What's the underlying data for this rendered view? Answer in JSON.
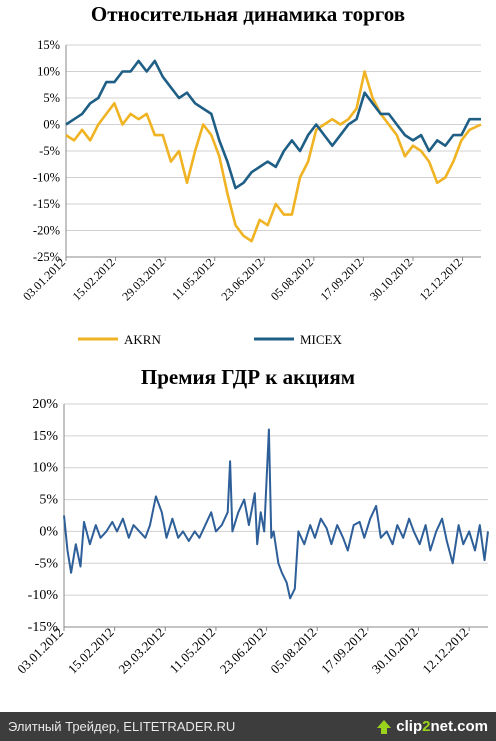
{
  "chart_data": [
    {
      "type": "line",
      "title": "Относительная динамика торгов",
      "ylim": [
        -0.25,
        0.15
      ],
      "yticks": [
        "-25%",
        "-20%",
        "-15%",
        "-10%",
        "-5%",
        "0%",
        "5%",
        "10%",
        "15%"
      ],
      "yticks_values": [
        -0.25,
        -0.2,
        -0.15,
        -0.1,
        -0.05,
        0,
        0.05,
        0.1,
        0.15
      ],
      "xticks": [
        "03.01.2012",
        "15.02.2012",
        "29.03.2012",
        "11.05.2012",
        "23.06.2012",
        "05.08.2012",
        "17.09.2012",
        "30.10.2012",
        "12.12.2012"
      ],
      "x_range": [
        "03.01.2012",
        "28.12.2012"
      ],
      "grid": "horizontal",
      "legend_position": "bottom",
      "series": [
        {
          "name": "AKRN",
          "color": "#f0b323",
          "points": [
            [
              "03.01.2012",
              -0.02
            ],
            [
              "10.01.2012",
              -0.03
            ],
            [
              "17.01.2012",
              -0.01
            ],
            [
              "24.01.2012",
              -0.03
            ],
            [
              "31.01.2012",
              0.0
            ],
            [
              "07.02.2012",
              0.02
            ],
            [
              "14.02.2012",
              0.04
            ],
            [
              "21.02.2012",
              0.0
            ],
            [
              "28.02.2012",
              0.02
            ],
            [
              "06.03.2012",
              0.01
            ],
            [
              "13.03.2012",
              0.02
            ],
            [
              "20.03.2012",
              -0.02
            ],
            [
              "27.03.2012",
              -0.02
            ],
            [
              "03.04.2012",
              -0.07
            ],
            [
              "10.04.2012",
              -0.05
            ],
            [
              "17.04.2012",
              -0.11
            ],
            [
              "24.04.2012",
              -0.05
            ],
            [
              "01.05.2012",
              0.0
            ],
            [
              "08.05.2012",
              -0.02
            ],
            [
              "15.05.2012",
              -0.06
            ],
            [
              "22.05.2012",
              -0.13
            ],
            [
              "29.05.2012",
              -0.19
            ],
            [
              "05.06.2012",
              -0.21
            ],
            [
              "12.06.2012",
              -0.22
            ],
            [
              "19.06.2012",
              -0.18
            ],
            [
              "26.06.2012",
              -0.19
            ],
            [
              "03.07.2012",
              -0.15
            ],
            [
              "10.07.2012",
              -0.17
            ],
            [
              "17.07.2012",
              -0.17
            ],
            [
              "24.07.2012",
              -0.1
            ],
            [
              "31.07.2012",
              -0.07
            ],
            [
              "07.08.2012",
              -0.01
            ],
            [
              "14.08.2012",
              0.0
            ],
            [
              "21.08.2012",
              0.01
            ],
            [
              "28.08.2012",
              0.0
            ],
            [
              "04.09.2012",
              0.01
            ],
            [
              "11.09.2012",
              0.03
            ],
            [
              "18.09.2012",
              0.1
            ],
            [
              "25.09.2012",
              0.05
            ],
            [
              "02.10.2012",
              0.02
            ],
            [
              "09.10.2012",
              0.0
            ],
            [
              "16.10.2012",
              -0.02
            ],
            [
              "23.10.2012",
              -0.06
            ],
            [
              "30.10.2012",
              -0.04
            ],
            [
              "06.11.2012",
              -0.05
            ],
            [
              "13.11.2012",
              -0.07
            ],
            [
              "20.11.2012",
              -0.11
            ],
            [
              "27.11.2012",
              -0.1
            ],
            [
              "04.12.2012",
              -0.07
            ],
            [
              "11.12.2012",
              -0.03
            ],
            [
              "18.12.2012",
              -0.01
            ],
            [
              "28.12.2012",
              0.0
            ]
          ]
        },
        {
          "name": "MICEX",
          "color": "#1f5f86",
          "points": [
            [
              "03.01.2012",
              0.0
            ],
            [
              "10.01.2012",
              0.01
            ],
            [
              "17.01.2012",
              0.02
            ],
            [
              "24.01.2012",
              0.04
            ],
            [
              "31.01.2012",
              0.05
            ],
            [
              "07.02.2012",
              0.08
            ],
            [
              "14.02.2012",
              0.08
            ],
            [
              "21.02.2012",
              0.1
            ],
            [
              "28.02.2012",
              0.1
            ],
            [
              "06.03.2012",
              0.12
            ],
            [
              "13.03.2012",
              0.1
            ],
            [
              "20.03.2012",
              0.12
            ],
            [
              "27.03.2012",
              0.09
            ],
            [
              "03.04.2012",
              0.07
            ],
            [
              "10.04.2012",
              0.05
            ],
            [
              "17.04.2012",
              0.06
            ],
            [
              "24.04.2012",
              0.04
            ],
            [
              "01.05.2012",
              0.03
            ],
            [
              "08.05.2012",
              0.02
            ],
            [
              "15.05.2012",
              -0.03
            ],
            [
              "22.05.2012",
              -0.07
            ],
            [
              "29.05.2012",
              -0.12
            ],
            [
              "05.06.2012",
              -0.11
            ],
            [
              "12.06.2012",
              -0.09
            ],
            [
              "19.06.2012",
              -0.08
            ],
            [
              "26.06.2012",
              -0.07
            ],
            [
              "03.07.2012",
              -0.08
            ],
            [
              "10.07.2012",
              -0.05
            ],
            [
              "17.07.2012",
              -0.03
            ],
            [
              "24.07.2012",
              -0.05
            ],
            [
              "31.07.2012",
              -0.02
            ],
            [
              "07.08.2012",
              0.0
            ],
            [
              "14.08.2012",
              -0.02
            ],
            [
              "21.08.2012",
              -0.04
            ],
            [
              "28.08.2012",
              -0.02
            ],
            [
              "04.09.2012",
              0.0
            ],
            [
              "11.09.2012",
              0.01
            ],
            [
              "18.09.2012",
              0.06
            ],
            [
              "25.09.2012",
              0.04
            ],
            [
              "02.10.2012",
              0.02
            ],
            [
              "09.10.2012",
              0.02
            ],
            [
              "16.10.2012",
              0.0
            ],
            [
              "23.10.2012",
              -0.02
            ],
            [
              "30.10.2012",
              -0.03
            ],
            [
              "06.11.2012",
              -0.02
            ],
            [
              "13.11.2012",
              -0.05
            ],
            [
              "20.11.2012",
              -0.03
            ],
            [
              "27.11.2012",
              -0.04
            ],
            [
              "04.12.2012",
              -0.02
            ],
            [
              "11.12.2012",
              -0.02
            ],
            [
              "18.12.2012",
              0.01
            ],
            [
              "28.12.2012",
              0.01
            ]
          ]
        }
      ]
    },
    {
      "type": "line",
      "title": "Премия ГДР к акциям",
      "ylim": [
        -0.15,
        0.2
      ],
      "yticks": [
        "-15%",
        "-10%",
        "-5%",
        "0%",
        "5%",
        "10%",
        "15%",
        "20%"
      ],
      "yticks_values": [
        -0.15,
        -0.1,
        -0.05,
        0,
        0.05,
        0.1,
        0.15,
        0.2
      ],
      "xticks": [
        "03.01.2012",
        "15.02.2012",
        "29.03.2012",
        "11.05.2012",
        "23.06.2012",
        "05.08.2012",
        "17.09.2012",
        "30.10.2012",
        "12.12.2012"
      ],
      "x_range": [
        "03.01.2012",
        "28.12.2012"
      ],
      "grid": "horizontal",
      "series": [
        {
          "color": "#2e5f99",
          "points": [
            [
              "03.01.2012",
              0.025
            ],
            [
              "06.01.2012",
              -0.03
            ],
            [
              "09.01.2012",
              -0.065
            ],
            [
              "13.01.2012",
              -0.02
            ],
            [
              "17.01.2012",
              -0.055
            ],
            [
              "20.01.2012",
              0.015
            ],
            [
              "25.01.2012",
              -0.02
            ],
            [
              "30.01.2012",
              0.01
            ],
            [
              "03.02.2012",
              -0.01
            ],
            [
              "08.02.2012",
              0.0
            ],
            [
              "13.02.2012",
              0.015
            ],
            [
              "17.02.2012",
              0.0
            ],
            [
              "22.02.2012",
              0.02
            ],
            [
              "27.02.2012",
              -0.01
            ],
            [
              "02.03.2012",
              0.01
            ],
            [
              "07.03.2012",
              0.0
            ],
            [
              "12.03.2012",
              -0.01
            ],
            [
              "16.03.2012",
              0.01
            ],
            [
              "21.03.2012",
              0.055
            ],
            [
              "26.03.2012",
              0.03
            ],
            [
              "30.03.2012",
              -0.01
            ],
            [
              "04.04.2012",
              0.02
            ],
            [
              "09.04.2012",
              -0.01
            ],
            [
              "13.04.2012",
              0.0
            ],
            [
              "18.04.2012",
              -0.015
            ],
            [
              "23.04.2012",
              0.0
            ],
            [
              "27.04.2012",
              -0.01
            ],
            [
              "02.05.2012",
              0.01
            ],
            [
              "07.05.2012",
              0.03
            ],
            [
              "11.05.2012",
              0.0
            ],
            [
              "16.05.2012",
              0.01
            ],
            [
              "21.05.2012",
              0.03
            ],
            [
              "23.05.2012",
              0.11
            ],
            [
              "25.05.2012",
              0.0
            ],
            [
              "30.05.2012",
              0.03
            ],
            [
              "04.06.2012",
              0.05
            ],
            [
              "08.06.2012",
              0.01
            ],
            [
              "13.06.2012",
              0.06
            ],
            [
              "15.06.2012",
              -0.02
            ],
            [
              "18.06.2012",
              0.03
            ],
            [
              "21.06.2012",
              0.0
            ],
            [
              "25.06.2012",
              0.16
            ],
            [
              "27.06.2012",
              -0.01
            ],
            [
              "29.06.2012",
              0.0
            ],
            [
              "03.07.2012",
              -0.05
            ],
            [
              "06.07.2012",
              -0.065
            ],
            [
              "10.07.2012",
              -0.08
            ],
            [
              "13.07.2012",
              -0.105
            ],
            [
              "17.07.2012",
              -0.09
            ],
            [
              "20.07.2012",
              0.0
            ],
            [
              "25.07.2012",
              -0.02
            ],
            [
              "30.07.2012",
              0.01
            ],
            [
              "03.08.2012",
              -0.01
            ],
            [
              "08.08.2012",
              0.02
            ],
            [
              "13.08.2012",
              0.005
            ],
            [
              "17.08.2012",
              -0.02
            ],
            [
              "22.08.2012",
              0.01
            ],
            [
              "27.08.2012",
              -0.01
            ],
            [
              "31.08.2012",
              -0.03
            ],
            [
              "05.09.2012",
              0.01
            ],
            [
              "10.09.2012",
              0.015
            ],
            [
              "14.09.2012",
              -0.01
            ],
            [
              "19.09.2012",
              0.02
            ],
            [
              "24.09.2012",
              0.04
            ],
            [
              "28.09.2012",
              -0.01
            ],
            [
              "03.10.2012",
              0.0
            ],
            [
              "08.10.2012",
              -0.02
            ],
            [
              "12.10.2012",
              0.01
            ],
            [
              "17.10.2012",
              -0.01
            ],
            [
              "22.10.2012",
              0.02
            ],
            [
              "26.10.2012",
              0.0
            ],
            [
              "31.10.2012",
              -0.02
            ],
            [
              "05.11.2012",
              0.01
            ],
            [
              "09.11.2012",
              -0.03
            ],
            [
              "14.11.2012",
              0.0
            ],
            [
              "19.11.2012",
              0.02
            ],
            [
              "23.11.2012",
              -0.015
            ],
            [
              "28.11.2012",
              -0.05
            ],
            [
              "03.12.2012",
              0.01
            ],
            [
              "07.12.2012",
              -0.02
            ],
            [
              "12.12.2012",
              0.0
            ],
            [
              "17.12.2012",
              -0.03
            ],
            [
              "21.12.2012",
              0.01
            ],
            [
              "25.12.2012",
              -0.045
            ],
            [
              "28.12.2012",
              0.0
            ]
          ]
        }
      ]
    }
  ],
  "footer": {
    "text": "Элитный Трейдер, ELITETRADER.RU",
    "brand_main": "clip",
    "brand_accent": "2",
    "brand_end": "net.com"
  }
}
